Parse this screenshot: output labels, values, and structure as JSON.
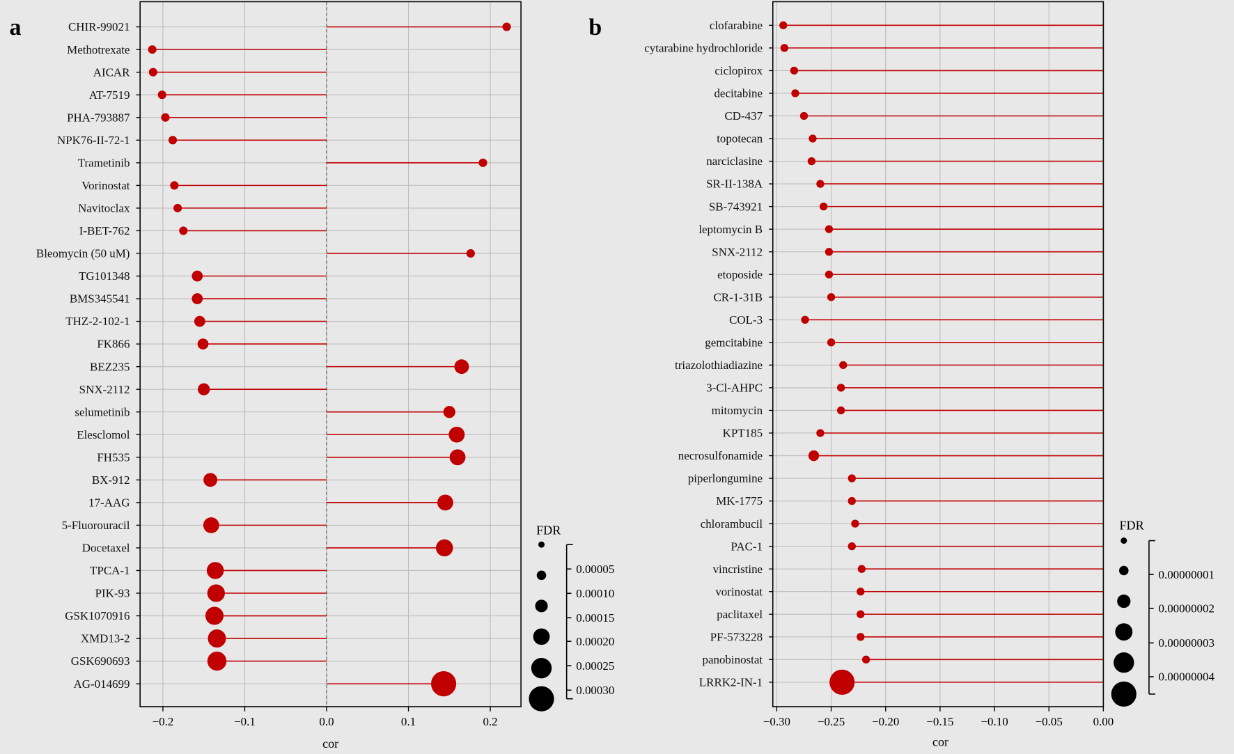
{
  "colors": {
    "marker": "#c00000",
    "stem": "#c00000",
    "background": "#e8e8e8",
    "grid": "#bdbdbd",
    "legend": "#000000"
  },
  "chart_data": [
    {
      "type": "lollipop",
      "panel_label": "a",
      "xlabel": "cor",
      "xlim": [
        -0.225,
        0.235
      ],
      "xticks": [
        "-0.2",
        "-0.1",
        "0.0",
        "0.1",
        "0.2"
      ],
      "xtick_values": [
        -0.2,
        -0.1,
        0.0,
        0.1,
        0.2
      ],
      "grid": true,
      "zero_line": "dashed",
      "size_legend": {
        "title": "FDR",
        "ticks": [
          "0.00005",
          "0.00010",
          "0.00015",
          "0.00020",
          "0.00025",
          "0.00030"
        ],
        "placement": "bottom-right"
      },
      "categories": [
        "CHIR-99021",
        "Methotrexate",
        "AICAR",
        "AT-7519",
        "PHA-793887",
        "NPK76-II-72-1",
        "Trametinib",
        "Vorinostat",
        "Navitoclax",
        "I-BET-762",
        "Bleomycin (50 uM)",
        "TG101348",
        "BMS345541",
        "THZ-2-102-1",
        "FK866",
        "BEZ235",
        "SNX-2112",
        "selumetinib",
        "Elesclomol",
        "FH535",
        "BX-912",
        "17-AAG",
        "5-Fluorouracil",
        "Docetaxel",
        "TPCA-1",
        "PIK-93",
        "GSK1070916",
        "XMD13-2",
        "GSK690693",
        "AG-014699"
      ],
      "cor": [
        0.22,
        -0.213,
        -0.212,
        -0.201,
        -0.197,
        -0.188,
        0.191,
        -0.186,
        -0.182,
        -0.175,
        0.176,
        -0.158,
        -0.158,
        -0.155,
        -0.151,
        0.165,
        -0.15,
        0.15,
        0.159,
        0.16,
        -0.142,
        0.145,
        -0.141,
        0.144,
        -0.136,
        -0.135,
        -0.137,
        -0.134,
        -0.134,
        0.143
      ],
      "fdr": [
        5e-06,
        5e-06,
        5e-06,
        5e-06,
        5e-06,
        5e-06,
        5e-06,
        5e-06,
        5e-06,
        5e-06,
        5e-06,
        2e-05,
        2e-05,
        2e-05,
        2e-05,
        6e-05,
        3e-05,
        3e-05,
        8e-05,
        8e-05,
        5e-05,
        8e-05,
        8e-05,
        0.0001,
        0.0001,
        0.00011,
        0.00012,
        0.00012,
        0.00014,
        0.0003
      ]
    },
    {
      "type": "lollipop",
      "panel_label": "b",
      "xlabel": "cor",
      "xlim": [
        -0.305,
        0.0
      ],
      "xticks": [
        "-0.30",
        "-0.25",
        "-0.20",
        "-0.15",
        "-0.10",
        "-0.05",
        "0.00"
      ],
      "xtick_values": [
        -0.3,
        -0.25,
        -0.2,
        -0.15,
        -0.1,
        -0.05,
        0.0
      ],
      "grid": true,
      "size_legend": {
        "title": "FDR",
        "ticks": [
          "0.00000001",
          "0.00000002",
          "0.00000003",
          "0.00000004"
        ],
        "placement": "bottom-right"
      },
      "categories": [
        "clofarabine",
        "cytarabine hydrochloride",
        "ciclopirox",
        "decitabine",
        "CD-437",
        "topotecan",
        "narciclasine",
        "SR-II-138A",
        "SB-743921",
        "leptomycin B",
        "SNX-2112",
        "etoposide",
        "CR-1-31B",
        "COL-3",
        "gemcitabine",
        "triazolothiadiazine",
        "3-Cl-AHPC",
        "mitomycin",
        "KPT185",
        "necrosulfonamide",
        "piperlongumine",
        "MK-1775",
        "chlorambucil",
        "PAC-1",
        "vincristine",
        "vorinostat",
        "paclitaxel",
        "PF-573228",
        "panobinostat",
        "LRRK2-IN-1"
      ],
      "cor": [
        -0.294,
        -0.293,
        -0.284,
        -0.283,
        -0.275,
        -0.267,
        -0.268,
        -0.26,
        -0.257,
        -0.252,
        -0.252,
        -0.252,
        -0.25,
        -0.274,
        -0.25,
        -0.239,
        -0.241,
        -0.241,
        -0.26,
        -0.266,
        -0.231,
        -0.231,
        -0.228,
        -0.231,
        -0.222,
        -0.223,
        -0.223,
        -0.223,
        -0.218,
        -0.24
      ],
      "fdr": [
        5e-10,
        5e-10,
        5e-10,
        5e-10,
        5e-10,
        5e-10,
        5e-10,
        5e-10,
        5e-10,
        5e-10,
        5e-10,
        5e-10,
        5e-10,
        5e-10,
        5e-10,
        5e-10,
        5e-10,
        5e-10,
        5e-10,
        3e-09,
        5e-10,
        5e-10,
        5e-10,
        5e-10,
        5e-10,
        5e-10,
        5e-10,
        5e-10,
        5e-10,
        5e-08
      ]
    }
  ]
}
